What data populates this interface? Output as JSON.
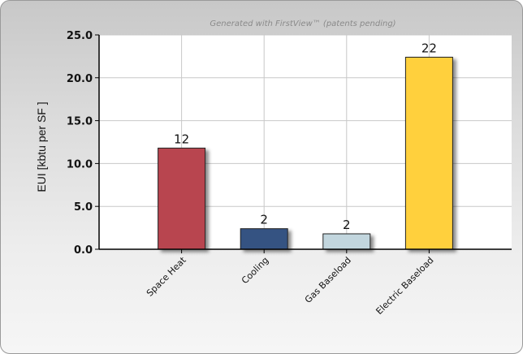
{
  "chart_data": {
    "type": "bar",
    "subtitle": "Generated with FirstView™ (patents pending)",
    "ylabel": "EUI [kbtu per SF ]",
    "xlabel": "",
    "ylim": [
      0,
      25
    ],
    "yticks": [
      "0.0",
      "5.0",
      "10.0",
      "15.0",
      "20.0",
      "25.0"
    ],
    "categories": [
      "Space Heat",
      "Cooling",
      "Gas Baseload",
      "Electric Baseload"
    ],
    "values": [
      11.8,
      2.4,
      1.8,
      22.4
    ],
    "data_labels": [
      "12",
      "2",
      "2",
      "22"
    ],
    "colors": [
      "#b84550",
      "#355382",
      "#c2d6de",
      "#ffd03c"
    ],
    "grid": true,
    "legend": "none"
  }
}
